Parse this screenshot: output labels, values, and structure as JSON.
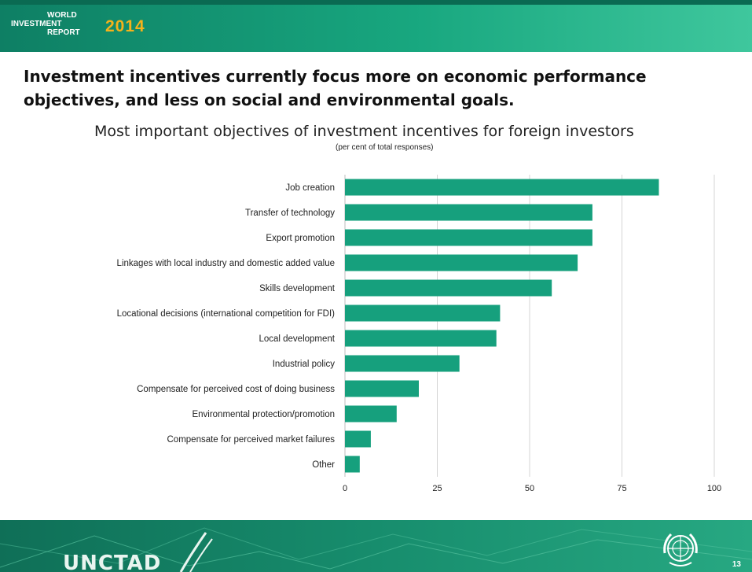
{
  "header": {
    "logo_line1": "WORLD",
    "logo_line2": "INVESTMENT",
    "logo_line3": "REPORT",
    "logo_year": "2014"
  },
  "slide_title": "Investment incentives currently focus more on economic performance objectives, and less on social and environmental goals.",
  "footer": {
    "org": "UNCTAD",
    "page_number": "13"
  },
  "colors": {
    "bar": "#16a07d",
    "header": "#18a77f",
    "footer": "#178d6d",
    "grid": "#d4d4d4"
  },
  "chart_data": {
    "type": "bar",
    "orientation": "horizontal",
    "title": "Most important objectives of investment incentives for foreign investors",
    "subtitle": "(per cent of total responses)",
    "categories": [
      "Job creation",
      "Transfer of technology",
      "Export promotion",
      "Linkages with local industry and domestic added value",
      "Skills development",
      "Locational decisions (international competition for FDI)",
      "Local development",
      "Industrial policy",
      "Compensate for perceived cost of doing business",
      "Environmental protection/promotion",
      "Compensate for perceived market failures",
      "Other"
    ],
    "values": [
      85,
      67,
      67,
      63,
      56,
      42,
      41,
      31,
      20,
      14,
      7,
      4
    ],
    "xlim": [
      0,
      100
    ],
    "xticks": [
      "0",
      "25",
      "50",
      "75",
      "100"
    ],
    "grid": true
  }
}
